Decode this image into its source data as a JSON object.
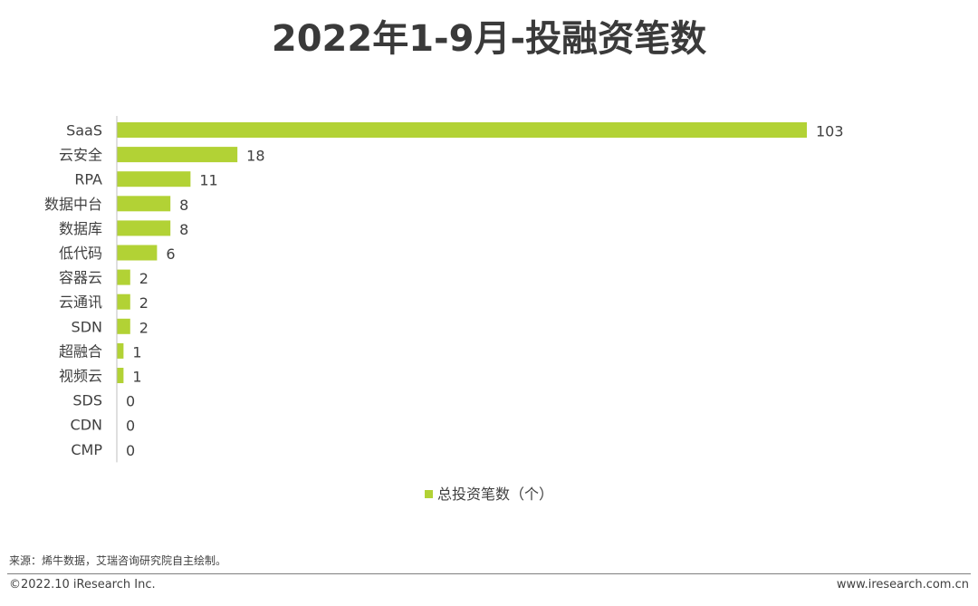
{
  "title": "2022年1-9月-投融资笔数",
  "legend_label": "总投资笔数（个）",
  "source_note": "来源：烯牛数据，艾瑞咨询研究院自主绘制。",
  "copyright": "©2022.10 iResearch Inc.",
  "website": "www.iresearch.com.cn",
  "colors": {
    "bar": "#b2d235",
    "axis": "#bfbfbf"
  },
  "chart_data": {
    "type": "bar",
    "orientation": "horizontal",
    "title": "2022年1-9月-投融资笔数",
    "categories": [
      "SaaS",
      "云安全",
      "RPA",
      "数据中台",
      "数据库",
      "低代码",
      "容器云",
      "云通讯",
      "SDN",
      "超融合",
      "视频云",
      "SDS",
      "CDN",
      "CMP"
    ],
    "series": [
      {
        "name": "总投资笔数（个）",
        "values": [
          103,
          18,
          11,
          8,
          8,
          6,
          2,
          2,
          2,
          1,
          1,
          0,
          0,
          0
        ]
      }
    ],
    "xlim": [
      0,
      103
    ],
    "grid": false,
    "legend_position": "bottom"
  }
}
